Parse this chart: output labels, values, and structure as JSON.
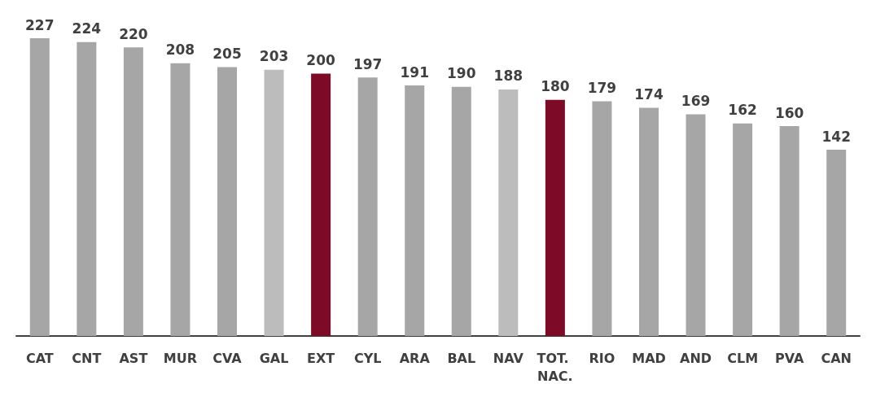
{
  "chart_data": {
    "type": "bar",
    "categories": [
      "CAT",
      "CNT",
      "AST",
      "MUR",
      "CVA",
      "GAL",
      "EXT",
      "CYL",
      "ARA",
      "BAL",
      "NAV",
      "TOT. NAC.",
      "RIO",
      "MAD",
      "AND",
      "CLM",
      "PVA",
      "CAN"
    ],
    "values": [
      227,
      224,
      220,
      208,
      205,
      203,
      200,
      197,
      191,
      190,
      188,
      180,
      179,
      174,
      169,
      162,
      160,
      142
    ],
    "colors": [
      "#a6a6a6",
      "#a6a6a6",
      "#a6a6a6",
      "#a6a6a6",
      "#a6a6a6",
      "#bcbcbc",
      "#7d0a26",
      "#a6a6a6",
      "#a6a6a6",
      "#a6a6a6",
      "#bcbcbc",
      "#7d0a26",
      "#a6a6a6",
      "#a6a6a6",
      "#a6a6a6",
      "#a6a6a6",
      "#a6a6a6",
      "#a6a6a6"
    ],
    "ylim": [
      0,
      227
    ],
    "data_labels": true
  }
}
